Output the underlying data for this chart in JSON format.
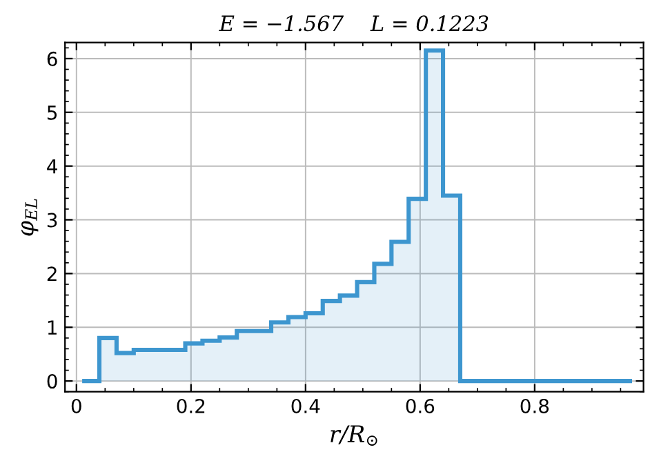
{
  "chart_data": {
    "type": "histogram",
    "title": "E = −1.567    L = 0.1223",
    "xlabel": "r/R$_{⊙}$",
    "ylabel": "φ$_{EL}$",
    "bins": [
      0.01,
      0.04,
      0.07,
      0.1,
      0.13,
      0.16,
      0.19,
      0.22,
      0.25,
      0.28,
      0.31,
      0.34,
      0.37,
      0.4,
      0.43,
      0.46,
      0.49,
      0.52,
      0.55,
      0.58,
      0.61,
      0.64,
      0.67,
      0.7,
      0.73,
      0.76,
      0.79,
      0.82,
      0.85,
      0.88,
      0.91,
      0.94,
      0.97
    ],
    "values": [
      0,
      0.8,
      0.52,
      0.58,
      0.58,
      0.58,
      0.7,
      0.75,
      0.81,
      0.93,
      0.93,
      1.09,
      1.19,
      1.26,
      1.49,
      1.59,
      1.84,
      2.18,
      2.59,
      3.39,
      6.15,
      3.45,
      0,
      0,
      0,
      0,
      0,
      0,
      0,
      0,
      0,
      0
    ],
    "color": "#3d96cf",
    "xlim": [
      -0.02,
      0.99
    ],
    "ylim": [
      -0.2,
      6.3
    ],
    "xticks": [
      0,
      0.2,
      0.4,
      0.6,
      0.8
    ],
    "yticks": [
      0,
      1,
      2,
      3,
      4,
      5,
      6
    ],
    "grid": true
  }
}
